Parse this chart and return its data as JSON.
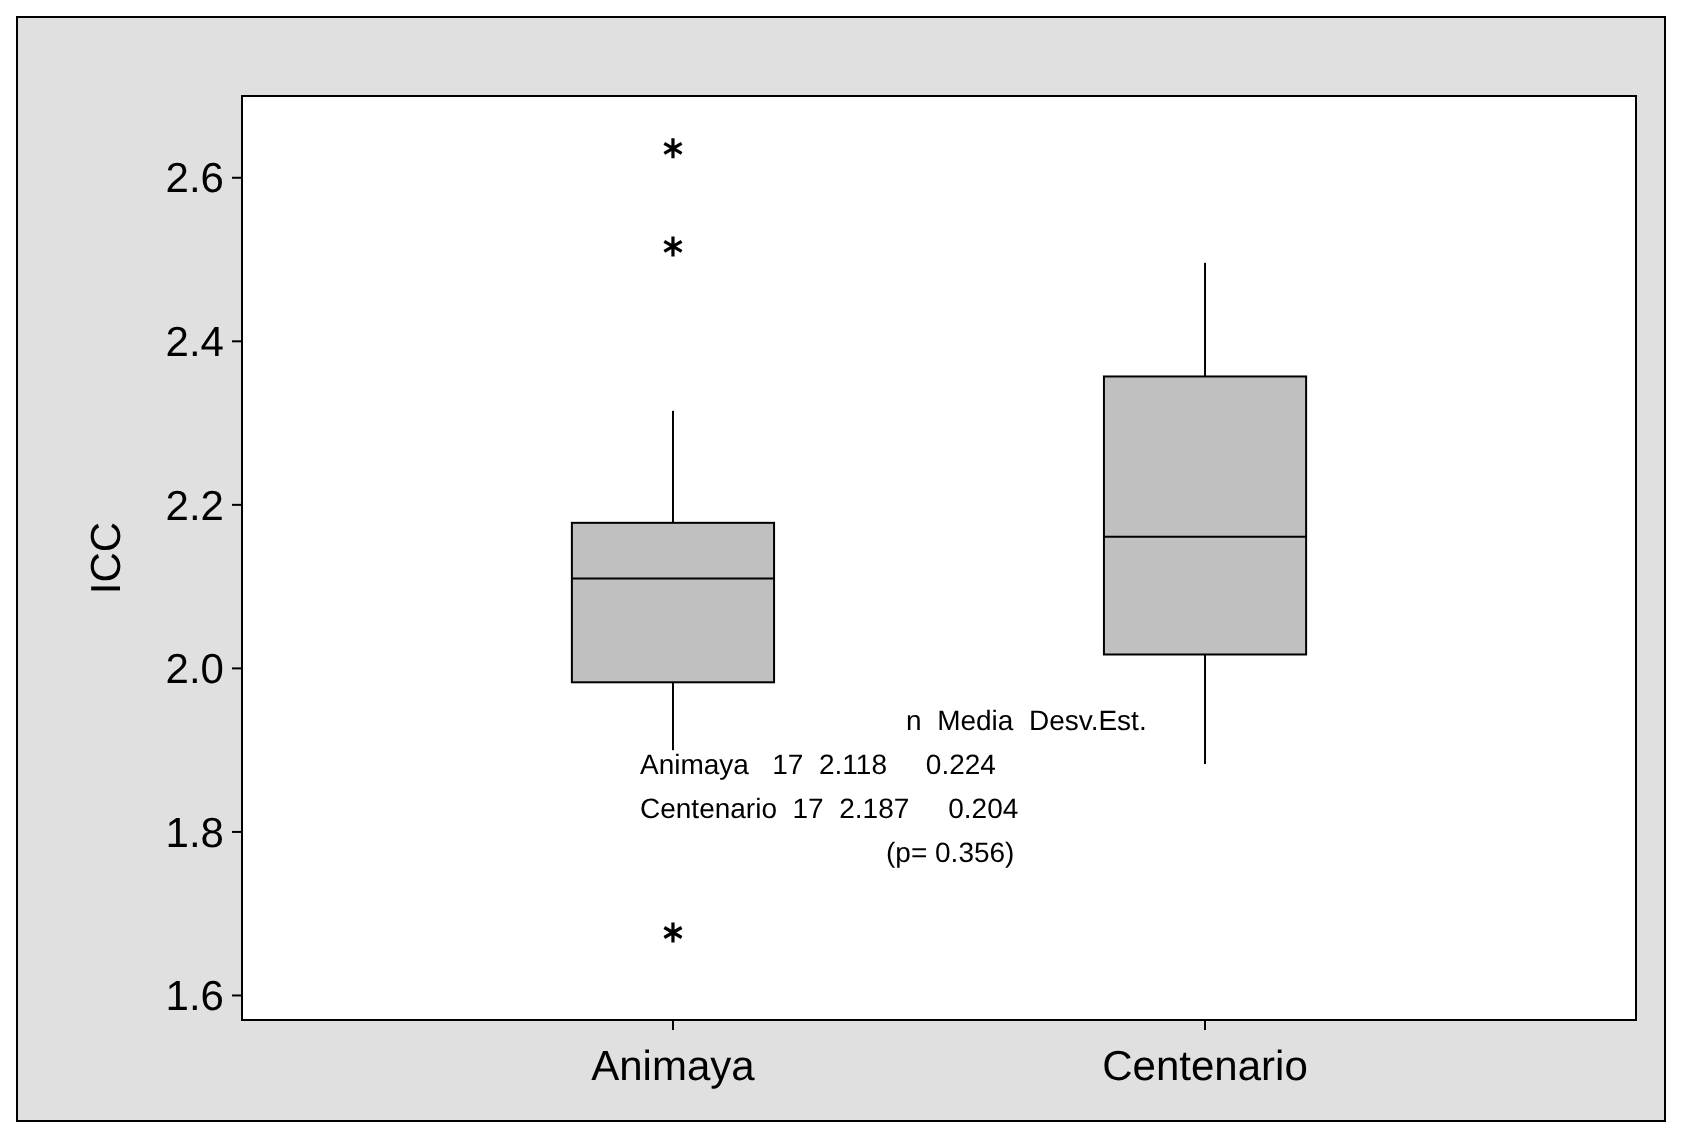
{
  "chart_data": {
    "type": "box",
    "ylabel": "ICC",
    "categories": [
      "Animaya",
      "Centenario"
    ],
    "boxes": [
      {
        "low": 1.9,
        "q1": 1.983,
        "median": 2.11,
        "q3": 2.178,
        "high": 2.315,
        "outliers": [
          2.636,
          2.516,
          1.677
        ]
      },
      {
        "low": 1.883,
        "q1": 2.017,
        "median": 2.161,
        "q3": 2.357,
        "high": 2.496
      }
    ],
    "color": "#c0c0c0",
    "ylim": [
      1.57,
      2.7
    ],
    "yticks": [
      1.6,
      1.8,
      {
        "value": 2,
        "label": "2.0"
      },
      2.2,
      2.4,
      2.6
    ],
    "grid": false,
    "marker": "star",
    "annotations": [
      "n  Media  Desv.Est.",
      "Animaya   17  2.118     0.224",
      "Centenario  17  2.187     0.204",
      "(p= 0.356)"
    ]
  }
}
